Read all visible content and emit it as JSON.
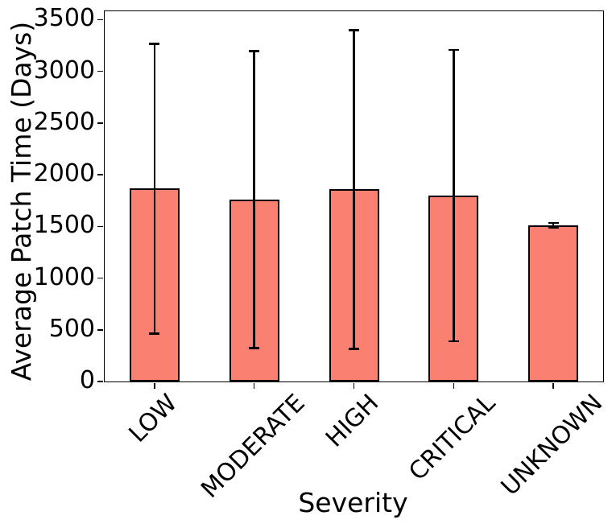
{
  "chart_data": {
    "type": "bar",
    "title": "",
    "xlabel": "Severity",
    "ylabel": "Average Patch Time (Days)",
    "categories": [
      "LOW",
      "MODERATE",
      "HIGH",
      "CRITICAL",
      "UNKNOWN"
    ],
    "values": [
      1865,
      1758,
      1857,
      1797,
      1512
    ],
    "error_low": [
      465,
      322,
      315,
      388,
      1492
    ],
    "error_high": [
      3265,
      3196,
      3397,
      3206,
      1532
    ],
    "ylim": [
      0,
      3580
    ],
    "yticks": [
      0,
      500,
      1000,
      1500,
      2000,
      2500,
      3000,
      3500
    ],
    "bar_color": "#FA8072",
    "bar_edge_color": "#000000",
    "error_bar_color": "#000000",
    "background_color": "#FFFFFF",
    "grid": false,
    "legend": null,
    "x_tick_rotation_deg": 45
  }
}
